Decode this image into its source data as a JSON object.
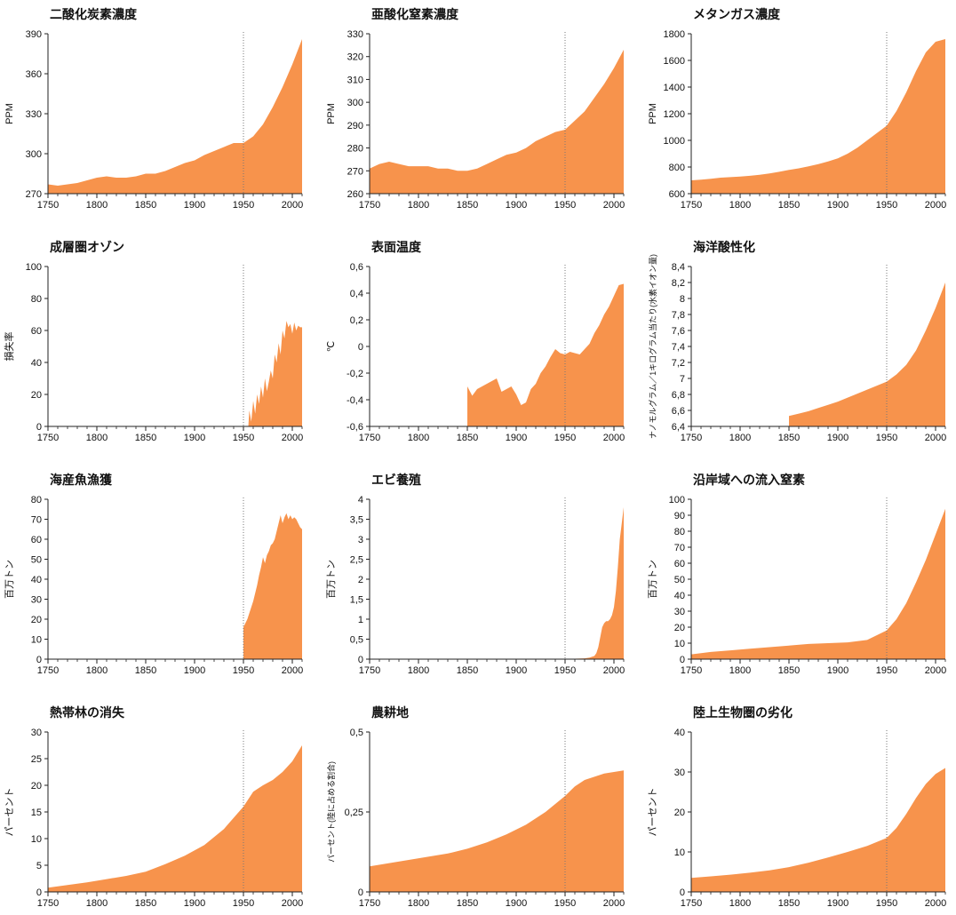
{
  "colors": {
    "fill": "#F7934C",
    "axis": "#222222",
    "refline": "#777777"
  },
  "chart_data": [
    {
      "type": "area",
      "title": "二酸化炭素濃度",
      "ylabel": "PPM",
      "xlim": [
        1750,
        2010
      ],
      "ylim": [
        270,
        390
      ],
      "yticks": [
        270,
        300,
        330,
        360,
        390
      ],
      "yticklabels": [
        "270",
        "300",
        "330",
        "360",
        "390"
      ],
      "xticks": [
        1750,
        1800,
        1850,
        1900,
        1950,
        2000
      ],
      "xticklabels": [
        "1750",
        "1800",
        "1850",
        "1900",
        "1950",
        "2000"
      ],
      "refline_x": 1950,
      "x": [
        1750,
        1760,
        1770,
        1780,
        1790,
        1800,
        1810,
        1820,
        1830,
        1840,
        1850,
        1860,
        1870,
        1880,
        1890,
        1900,
        1910,
        1920,
        1930,
        1940,
        1950,
        1960,
        1970,
        1980,
        1990,
        2000,
        2010
      ],
      "y": [
        277,
        276,
        277,
        278,
        280,
        282,
        283,
        282,
        282,
        283,
        285,
        285,
        287,
        290,
        293,
        295,
        299,
        302,
        305,
        308,
        308,
        313,
        322,
        335,
        350,
        367,
        386
      ]
    },
    {
      "type": "area",
      "title": "亜酸化窒素濃度",
      "ylabel": "PPM",
      "xlim": [
        1750,
        2010
      ],
      "ylim": [
        260,
        330
      ],
      "yticks": [
        260,
        270,
        280,
        290,
        300,
        310,
        320,
        330
      ],
      "yticklabels": [
        "260",
        "270",
        "280",
        "290",
        "300",
        "310",
        "320",
        "330"
      ],
      "xticks": [
        1750,
        1800,
        1850,
        1900,
        1950,
        2000
      ],
      "xticklabels": [
        "1750",
        "1800",
        "1850",
        "1900",
        "1950",
        "2000"
      ],
      "refline_x": 1950,
      "x": [
        1750,
        1760,
        1770,
        1780,
        1790,
        1800,
        1810,
        1820,
        1830,
        1840,
        1850,
        1860,
        1870,
        1880,
        1890,
        1900,
        1910,
        1920,
        1930,
        1940,
        1950,
        1960,
        1970,
        1980,
        1990,
        2000,
        2010
      ],
      "y": [
        271,
        273,
        274,
        273,
        272,
        272,
        272,
        271,
        271,
        270,
        270,
        271,
        273,
        275,
        277,
        278,
        280,
        283,
        285,
        287,
        288,
        292,
        296,
        302,
        308,
        315,
        323
      ]
    },
    {
      "type": "area",
      "title": "メタンガス濃度",
      "ylabel": "PPM",
      "xlim": [
        1750,
        2010
      ],
      "ylim": [
        600,
        1800
      ],
      "yticks": [
        600,
        800,
        1000,
        1200,
        1400,
        1600,
        1800
      ],
      "yticklabels": [
        "600",
        "800",
        "1000",
        "1200",
        "1400",
        "1600",
        "1800"
      ],
      "xticks": [
        1750,
        1800,
        1850,
        1900,
        1950,
        2000
      ],
      "xticklabels": [
        "1750",
        "1800",
        "1850",
        "1900",
        "1950",
        "2000"
      ],
      "refline_x": 1950,
      "x": [
        1750,
        1760,
        1770,
        1780,
        1790,
        1800,
        1810,
        1820,
        1830,
        1840,
        1850,
        1860,
        1870,
        1880,
        1890,
        1900,
        1910,
        1920,
        1930,
        1940,
        1950,
        1960,
        1970,
        1980,
        1990,
        2000,
        2010
      ],
      "y": [
        700,
        705,
        712,
        720,
        724,
        728,
        734,
        742,
        752,
        764,
        778,
        790,
        805,
        822,
        842,
        865,
        900,
        945,
        1000,
        1055,
        1110,
        1220,
        1360,
        1520,
        1660,
        1740,
        1760
      ]
    },
    {
      "type": "area",
      "title": "成層圏オゾン",
      "ylabel": "損失率",
      "xlim": [
        1750,
        2010
      ],
      "ylim": [
        0,
        100
      ],
      "yticks": [
        0,
        20,
        40,
        60,
        80,
        100
      ],
      "yticklabels": [
        "0",
        "20",
        "40",
        "60",
        "80",
        "100"
      ],
      "xticks": [
        1750,
        1800,
        1850,
        1900,
        1950,
        2000
      ],
      "xticklabels": [
        "1750",
        "1800",
        "1850",
        "1900",
        "1950",
        "2000"
      ],
      "refline_x": 1950,
      "x": [
        1955,
        1956,
        1958,
        1960,
        1962,
        1964,
        1966,
        1968,
        1970,
        1972,
        1974,
        1976,
        1978,
        1980,
        1982,
        1984,
        1986,
        1988,
        1990,
        1992,
        1994,
        1996,
        1998,
        2000,
        2002,
        2004,
        2006,
        2008,
        2010
      ],
      "y": [
        0,
        10,
        3,
        16,
        8,
        20,
        14,
        25,
        18,
        30,
        22,
        28,
        35,
        30,
        45,
        40,
        52,
        45,
        60,
        55,
        66,
        62,
        64,
        58,
        65,
        60,
        63,
        62,
        62
      ]
    },
    {
      "type": "area",
      "title": "表面温度",
      "ylabel": "℃",
      "xlim": [
        1750,
        2010
      ],
      "ylim": [
        -0.6,
        0.6
      ],
      "yticks": [
        -0.6,
        -0.4,
        -0.2,
        0,
        0.2,
        0.4,
        0.6
      ],
      "yticklabels": [
        "-0,6",
        "-0,4",
        "-0,2",
        "0",
        "0,2",
        "0,4",
        "0,6"
      ],
      "xticks": [
        1750,
        1800,
        1850,
        1900,
        1950,
        2000
      ],
      "xticklabels": [
        "1750",
        "1800",
        "1850",
        "1900",
        "1950",
        "2000"
      ],
      "refline_x": 1950,
      "x": [
        1850,
        1855,
        1860,
        1865,
        1870,
        1875,
        1880,
        1885,
        1890,
        1895,
        1900,
        1905,
        1910,
        1915,
        1920,
        1925,
        1930,
        1935,
        1940,
        1945,
        1950,
        1955,
        1960,
        1965,
        1970,
        1975,
        1980,
        1985,
        1990,
        1995,
        2000,
        2005,
        2010
      ],
      "y": [
        -0.3,
        -0.37,
        -0.32,
        -0.3,
        -0.28,
        -0.26,
        -0.24,
        -0.34,
        -0.32,
        -0.3,
        -0.36,
        -0.44,
        -0.42,
        -0.32,
        -0.28,
        -0.2,
        -0.15,
        -0.08,
        -0.02,
        -0.05,
        -0.06,
        -0.04,
        -0.05,
        -0.06,
        -0.02,
        0.02,
        0.1,
        0.16,
        0.24,
        0.3,
        0.38,
        0.46,
        0.47
      ]
    },
    {
      "type": "area",
      "title": "海洋酸性化",
      "ylabel": "ナノモルグラム／1キログラム当たり(水素イオン量)",
      "xlim": [
        1750,
        2010
      ],
      "ylim": [
        6.4,
        8.4
      ],
      "yticks": [
        6.4,
        6.6,
        6.8,
        7,
        7.2,
        7.4,
        7.6,
        7.8,
        8,
        8.2,
        8.4
      ],
      "yticklabels": [
        "6,4",
        "6,6",
        "6,8",
        "7",
        "7,2",
        "7,4",
        "7,6",
        "7,8",
        "8",
        "8,2",
        "8,4"
      ],
      "xticks": [
        1750,
        1800,
        1850,
        1900,
        1950,
        2000
      ],
      "xticklabels": [
        "1750",
        "1800",
        "1850",
        "1900",
        "1950",
        "2000"
      ],
      "refline_x": 1950,
      "x": [
        1850,
        1860,
        1870,
        1880,
        1890,
        1900,
        1910,
        1920,
        1930,
        1940,
        1950,
        1960,
        1970,
        1980,
        1990,
        2000,
        2010
      ],
      "y": [
        6.53,
        6.56,
        6.59,
        6.63,
        6.67,
        6.71,
        6.76,
        6.81,
        6.86,
        6.91,
        6.96,
        7.05,
        7.17,
        7.35,
        7.6,
        7.88,
        8.2
      ]
    },
    {
      "type": "area",
      "title": "海産魚漁獲",
      "ylabel": "百万トン",
      "xlim": [
        1750,
        2010
      ],
      "ylim": [
        0,
        80
      ],
      "yticks": [
        0,
        10,
        20,
        30,
        40,
        50,
        60,
        70,
        80
      ],
      "yticklabels": [
        "0",
        "10",
        "20",
        "30",
        "40",
        "50",
        "60",
        "70",
        "80"
      ],
      "xticks": [
        1750,
        1800,
        1850,
        1900,
        1950,
        2000
      ],
      "xticklabels": [
        "1750",
        "1800",
        "1850",
        "1900",
        "1950",
        "2000"
      ],
      "refline_x": 1950,
      "x": [
        1950,
        1952,
        1954,
        1956,
        1958,
        1960,
        1962,
        1964,
        1966,
        1968,
        1970,
        1972,
        1974,
        1976,
        1978,
        1980,
        1982,
        1984,
        1986,
        1988,
        1990,
        1992,
        1994,
        1996,
        1998,
        2000,
        2002,
        2004,
        2006,
        2008,
        2010
      ],
      "y": [
        16,
        18,
        20,
        23,
        26,
        29,
        33,
        37,
        42,
        46,
        51,
        48,
        52,
        54,
        57,
        58,
        60,
        64,
        68,
        72,
        68,
        71,
        73,
        70,
        72,
        70,
        71,
        70,
        68,
        66,
        65
      ]
    },
    {
      "type": "area",
      "title": "エビ養殖",
      "ylabel": "百万トン",
      "xlim": [
        1750,
        2010
      ],
      "ylim": [
        0,
        4
      ],
      "yticks": [
        0,
        0.5,
        1,
        1.5,
        2,
        2.5,
        3,
        3.5,
        4
      ],
      "yticklabels": [
        "0",
        "0,5",
        "1",
        "1,5",
        "2",
        "2,5",
        "3",
        "3,5",
        "4"
      ],
      "xticks": [
        1750,
        1800,
        1850,
        1900,
        1950,
        2000
      ],
      "xticklabels": [
        "1750",
        "1800",
        "1850",
        "1900",
        "1950",
        "2000"
      ],
      "refline_x": 1950,
      "x": [
        1950,
        1960,
        1970,
        1975,
        1980,
        1982,
        1984,
        1986,
        1988,
        1990,
        1992,
        1994,
        1996,
        1998,
        2000,
        2002,
        2004,
        2006,
        2008,
        2010
      ],
      "y": [
        0,
        0.01,
        0.02,
        0.04,
        0.08,
        0.15,
        0.3,
        0.55,
        0.8,
        0.9,
        0.95,
        0.95,
        1.0,
        1.1,
        1.3,
        1.7,
        2.3,
        3.0,
        3.4,
        3.8
      ]
    },
    {
      "type": "area",
      "title": "沿岸域への流入窒素",
      "ylabel": "百万トン",
      "xlim": [
        1750,
        2010
      ],
      "ylim": [
        0,
        100
      ],
      "yticks": [
        0,
        10,
        20,
        30,
        40,
        50,
        60,
        70,
        80,
        90,
        100
      ],
      "yticklabels": [
        "0",
        "10",
        "20",
        "30",
        "40",
        "50",
        "60",
        "70",
        "80",
        "90",
        "100"
      ],
      "xticks": [
        1750,
        1800,
        1850,
        1900,
        1950,
        2000
      ],
      "xticklabels": [
        "1750",
        "1800",
        "1850",
        "1900",
        "1950",
        "2000"
      ],
      "refline_x": 1950,
      "x": [
        1750,
        1770,
        1790,
        1810,
        1830,
        1850,
        1870,
        1890,
        1910,
        1930,
        1950,
        1960,
        1970,
        1980,
        1990,
        2000,
        2010
      ],
      "y": [
        3,
        4.5,
        5.5,
        6.5,
        7.5,
        8.5,
        9.5,
        10,
        10.5,
        12,
        18,
        25,
        35,
        48,
        62,
        78,
        94
      ]
    },
    {
      "type": "area",
      "title": "熱帯林の消失",
      "ylabel": "パーセント",
      "xlim": [
        1750,
        2010
      ],
      "ylim": [
        0,
        30
      ],
      "yticks": [
        0,
        5,
        10,
        15,
        20,
        25,
        30
      ],
      "yticklabels": [
        "0",
        "5",
        "10",
        "15",
        "20",
        "25",
        "30"
      ],
      "xticks": [
        1750,
        1800,
        1850,
        1900,
        1950,
        2000
      ],
      "xticklabels": [
        "1750",
        "1800",
        "1850",
        "1900",
        "1950",
        "2000"
      ],
      "refline_x": 1950,
      "x": [
        1750,
        1770,
        1790,
        1810,
        1830,
        1850,
        1870,
        1890,
        1910,
        1930,
        1950,
        1960,
        1970,
        1980,
        1990,
        2000,
        2010
      ],
      "y": [
        0.8,
        1.3,
        1.8,
        2.4,
        3.0,
        3.8,
        5.2,
        6.8,
        8.8,
        11.8,
        16,
        18.8,
        20,
        21,
        22.5,
        24.5,
        27.5
      ]
    },
    {
      "type": "area",
      "title": "農耕地",
      "ylabel": "パーセント(陸に占める割合)",
      "xlim": [
        1750,
        2010
      ],
      "ylim": [
        0,
        0.5
      ],
      "yticks": [
        0,
        0.25,
        0.5
      ],
      "yticklabels": [
        "0",
        "0,25",
        "0,5"
      ],
      "xticks": [
        1750,
        1800,
        1850,
        1900,
        1950,
        2000
      ],
      "xticklabels": [
        "1750",
        "1800",
        "1850",
        "1900",
        "1950",
        "2000"
      ],
      "refline_x": 1950,
      "x": [
        1750,
        1770,
        1790,
        1810,
        1830,
        1850,
        1870,
        1890,
        1910,
        1930,
        1950,
        1960,
        1970,
        1980,
        1990,
        2000,
        2010
      ],
      "y": [
        0.08,
        0.09,
        0.1,
        0.11,
        0.12,
        0.135,
        0.155,
        0.18,
        0.21,
        0.25,
        0.3,
        0.33,
        0.35,
        0.36,
        0.37,
        0.375,
        0.38
      ]
    },
    {
      "type": "area",
      "title": "陸上生物圏の劣化",
      "ylabel": "パーセント",
      "xlim": [
        1750,
        2010
      ],
      "ylim": [
        0,
        40
      ],
      "yticks": [
        0,
        10,
        20,
        30,
        40
      ],
      "yticklabels": [
        "0",
        "10",
        "20",
        "30",
        "40"
      ],
      "xticks": [
        1750,
        1800,
        1850,
        1900,
        1950,
        2000
      ],
      "xticklabels": [
        "1750",
        "1800",
        "1850",
        "1900",
        "1950",
        "2000"
      ],
      "refline_x": 1950,
      "x": [
        1750,
        1770,
        1790,
        1810,
        1830,
        1850,
        1870,
        1890,
        1910,
        1930,
        1950,
        1960,
        1970,
        1980,
        1990,
        2000,
        2010
      ],
      "y": [
        3.5,
        3.9,
        4.3,
        4.8,
        5.4,
        6.2,
        7.3,
        8.6,
        10,
        11.5,
        13.5,
        16,
        19.5,
        23.5,
        27,
        29.5,
        31
      ]
    }
  ]
}
